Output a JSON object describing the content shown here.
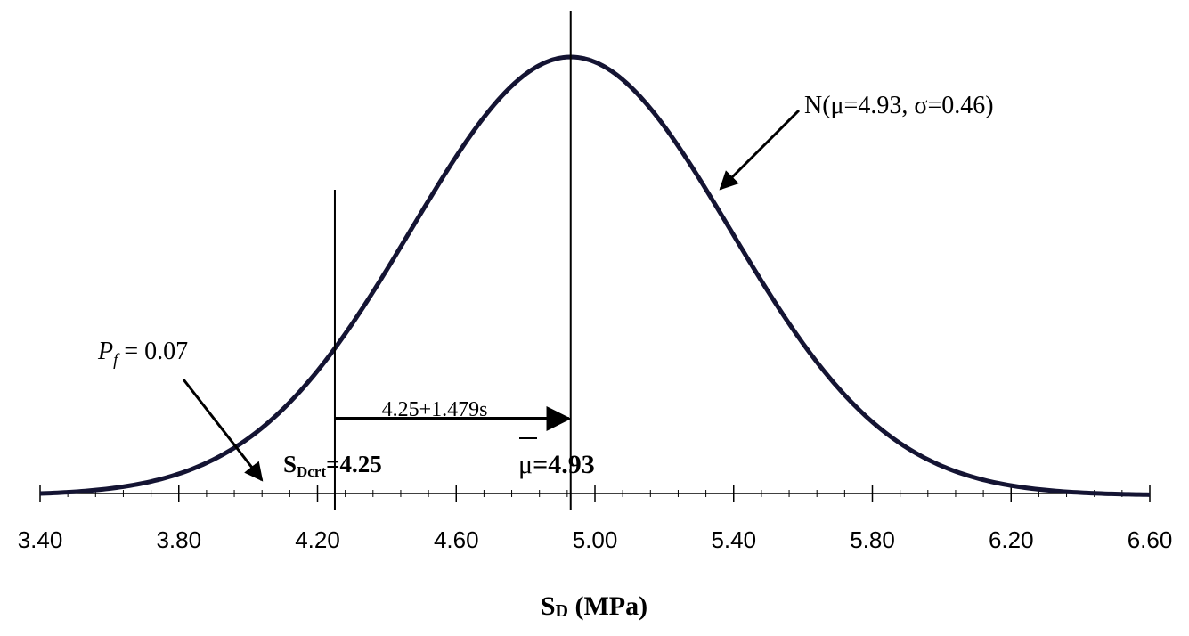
{
  "chart_data": {
    "type": "line",
    "xlabel_main": "S",
    "xlabel_sub": "D",
    "xlabel_unit": " (MPa)",
    "xlim": [
      3.4,
      6.6
    ],
    "xticks": [
      "3.40",
      "3.80",
      "4.20",
      "4.60",
      "5.00",
      "5.40",
      "5.80",
      "6.20",
      "6.60"
    ],
    "xtick_values": [
      3.4,
      3.8,
      4.2,
      4.6,
      5.0,
      5.4,
      5.8,
      6.2,
      6.6
    ],
    "minor_tick_step": 0.08,
    "series": [
      {
        "distribution": "normal",
        "mu": 4.93,
        "sigma": 0.46,
        "color": "#141433",
        "line_width": "heavy"
      }
    ],
    "annotations": {
      "dist_label": "N(μ=4.93, σ=0.46)",
      "pf_symbol": "P",
      "pf_sub": "f",
      "pf_value": " = 0.07",
      "span_label": "4.25+1.479s",
      "crit_main": "S",
      "crit_sub": "Dcrt",
      "crit_value": "=4.25",
      "mean_symbol": "μ",
      "mean_value": "=4.93"
    },
    "vlines": [
      {
        "name": "critical",
        "x": 4.25
      },
      {
        "name": "mean",
        "x": 4.93
      }
    ],
    "grid": false,
    "legend": "none"
  }
}
